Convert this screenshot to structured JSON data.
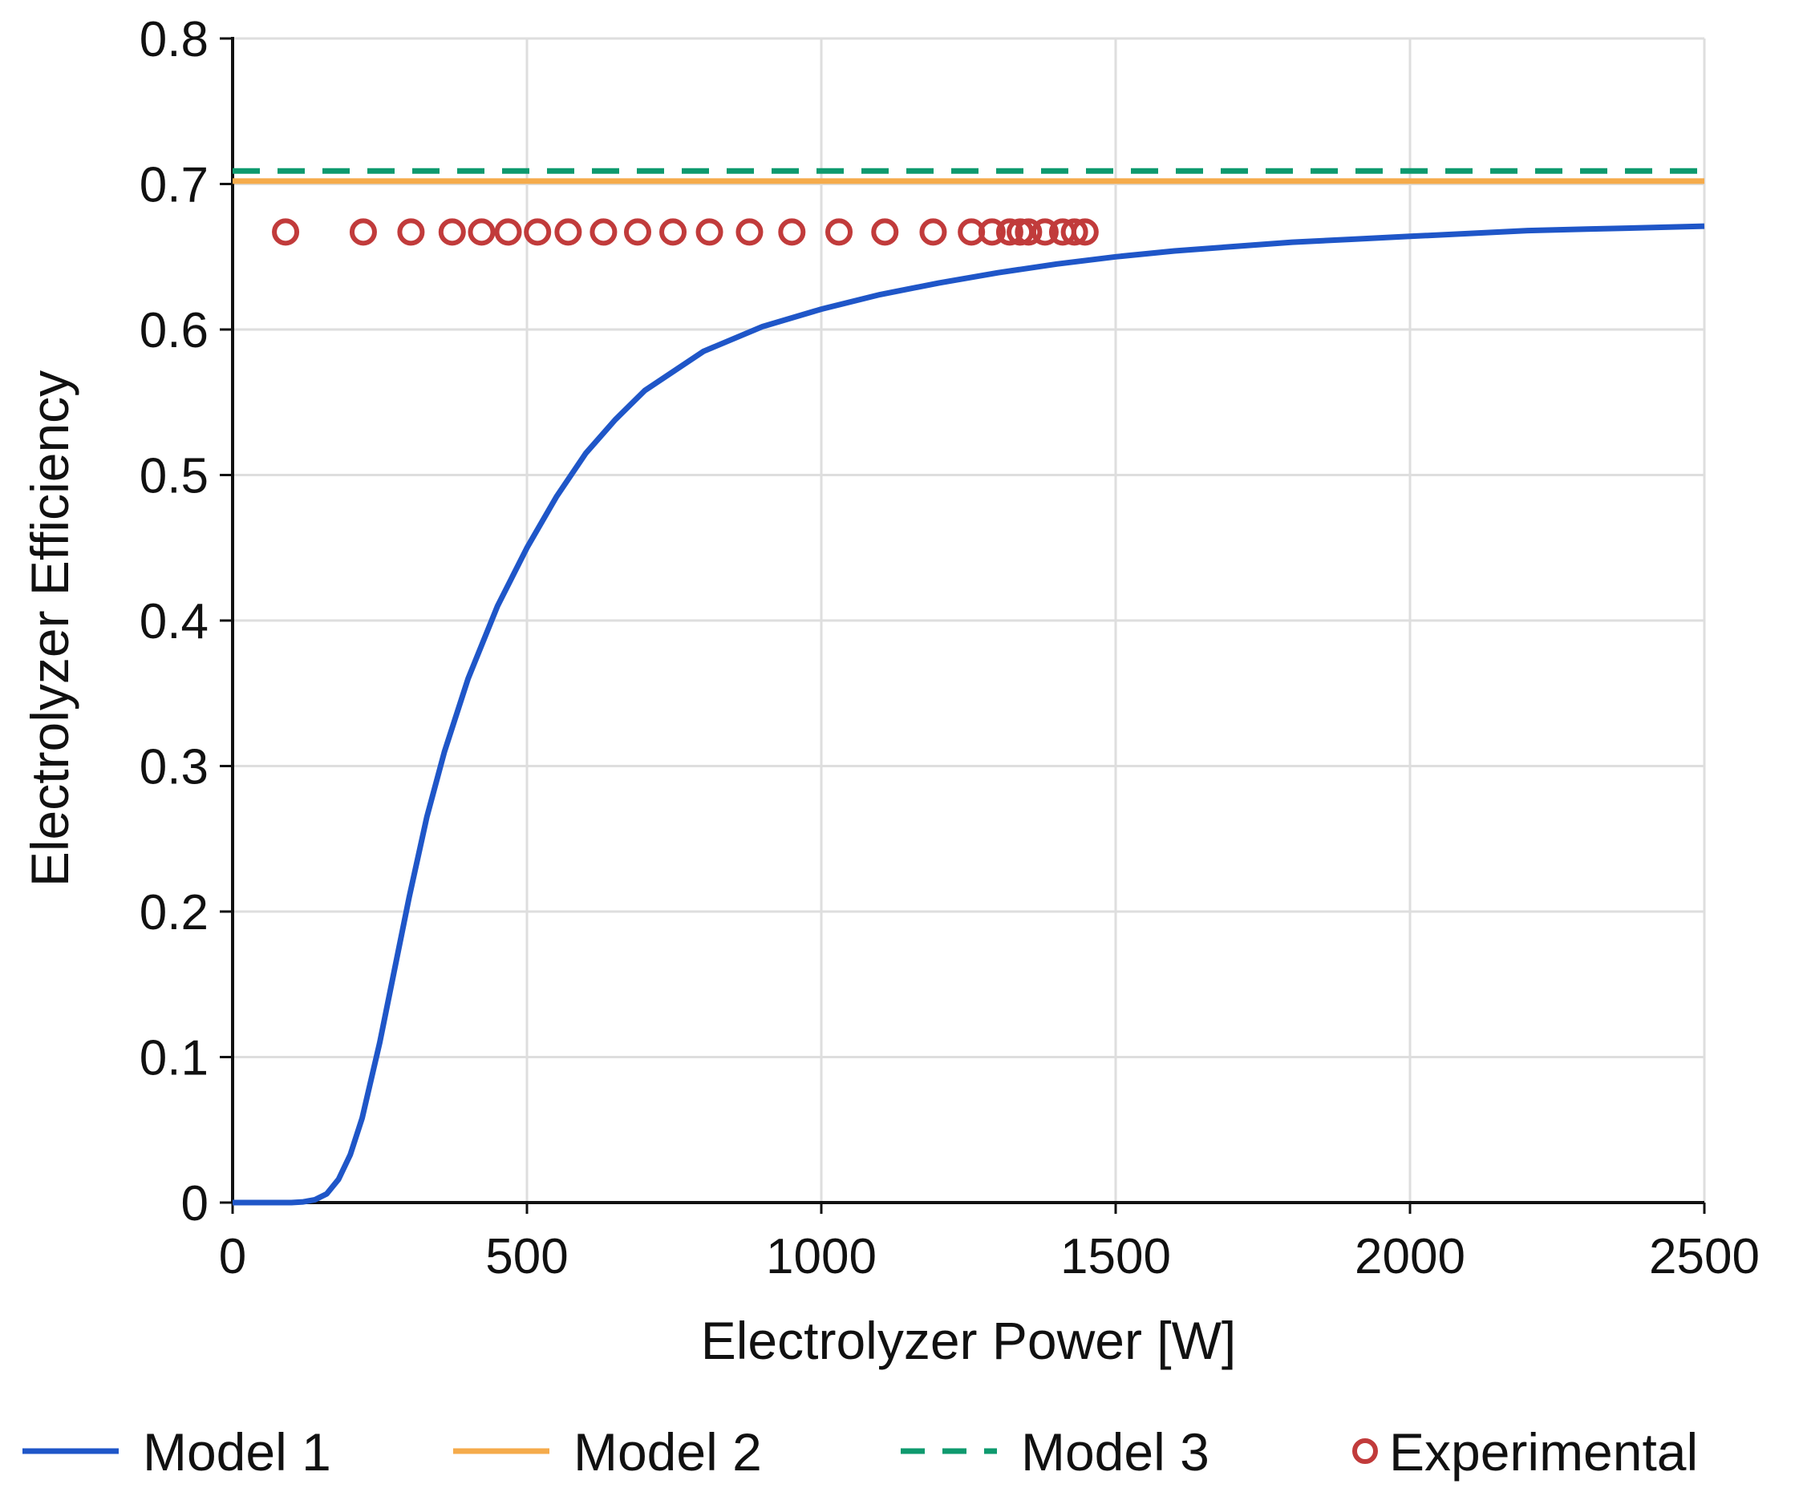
{
  "chart_data": {
    "type": "line",
    "title": "",
    "xlabel": "Electrolyzer Power [W]",
    "ylabel": "Electrolyzer Efficiency",
    "xlim": [
      0,
      2500
    ],
    "ylim": [
      0,
      0.8
    ],
    "xticks": [
      0,
      500,
      1000,
      1500,
      2000,
      2500
    ],
    "xtick_labels": [
      "0",
      "500",
      "1000",
      "1500",
      "2000",
      "2500"
    ],
    "yticks": [
      0,
      0.1,
      0.2,
      0.3,
      0.4,
      0.5,
      0.6,
      0.7,
      0.8
    ],
    "ytick_labels": [
      "0",
      "0.1",
      "0.2",
      "0.3",
      "0.4",
      "0.5",
      "0.6",
      "0.7",
      "0.8"
    ],
    "grid": true,
    "legend_position": "bottom",
    "series": [
      {
        "name": "Model 1",
        "style": "solid",
        "color": "#1f56c8",
        "x": [
          0,
          100,
          120,
          140,
          160,
          180,
          200,
          220,
          250,
          280,
          300,
          330,
          360,
          400,
          450,
          500,
          550,
          600,
          650,
          700,
          800,
          900,
          1000,
          1100,
          1200,
          1300,
          1400,
          1500,
          1600,
          1700,
          1800,
          1900,
          2000,
          2100,
          2200,
          2300,
          2400,
          2500
        ],
        "y": [
          0,
          0,
          0.0005,
          0.002,
          0.006,
          0.016,
          0.033,
          0.058,
          0.11,
          0.17,
          0.21,
          0.265,
          0.31,
          0.36,
          0.41,
          0.45,
          0.485,
          0.515,
          0.538,
          0.558,
          0.585,
          0.602,
          0.614,
          0.624,
          0.632,
          0.639,
          0.645,
          0.65,
          0.654,
          0.657,
          0.66,
          0.662,
          0.664,
          0.666,
          0.668,
          0.669,
          0.67,
          0.671
        ]
      },
      {
        "name": "Model 2",
        "style": "solid",
        "color": "#f5ab4b",
        "x": [
          0,
          2500
        ],
        "y": [
          0.702,
          0.702
        ]
      },
      {
        "name": "Model 3",
        "style": "dashed",
        "color": "#0e9a6e",
        "x": [
          0,
          2500
        ],
        "y": [
          0.709,
          0.709
        ]
      },
      {
        "name": "Experimental",
        "style": "markers",
        "color": "#c13b3b",
        "x": [
          90,
          222,
          303,
          373,
          423,
          468,
          518,
          570,
          630,
          688,
          748,
          810,
          878,
          950,
          1030,
          1108,
          1190,
          1255,
          1290,
          1320,
          1338,
          1352,
          1380,
          1410,
          1430,
          1448
        ],
        "y": [
          0.667,
          0.667,
          0.667,
          0.667,
          0.667,
          0.667,
          0.667,
          0.667,
          0.667,
          0.667,
          0.667,
          0.667,
          0.667,
          0.667,
          0.667,
          0.667,
          0.667,
          0.667,
          0.667,
          0.667,
          0.667,
          0.667,
          0.667,
          0.667,
          0.667,
          0.667
        ]
      }
    ]
  }
}
